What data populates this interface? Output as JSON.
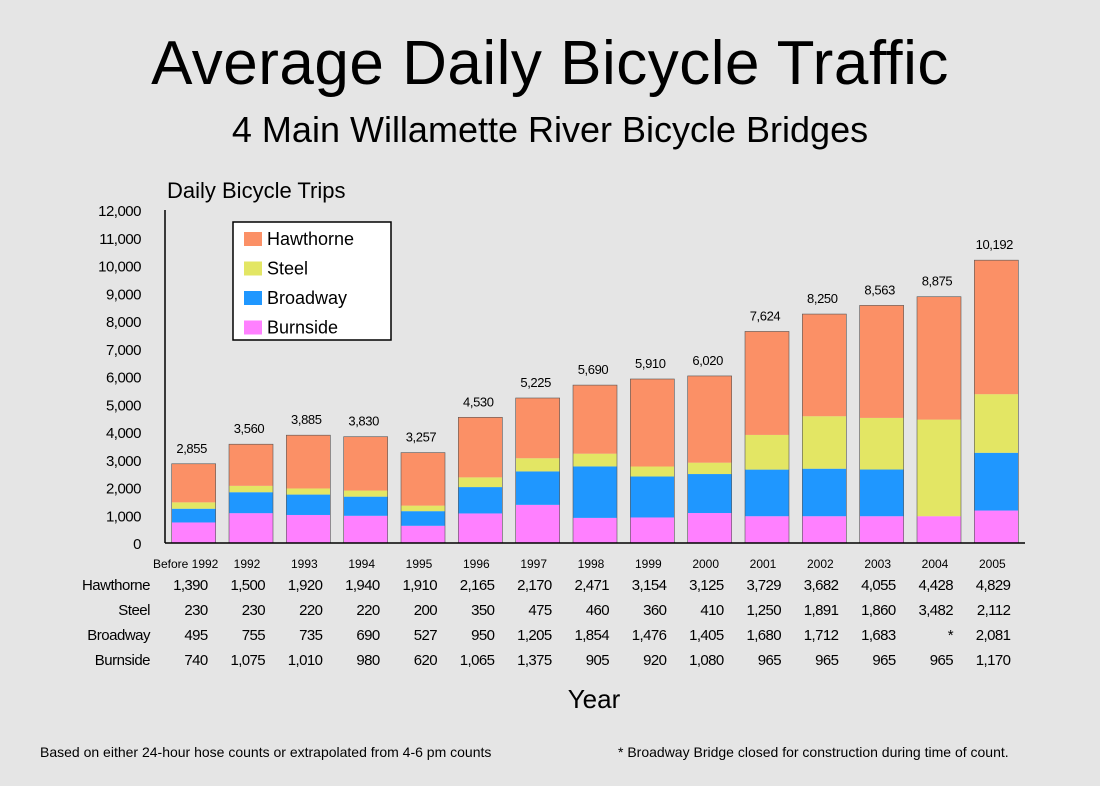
{
  "header": {
    "title": "Average Daily Bicycle Traffic",
    "subtitle": "4 Main Willamette River Bicycle Bridges"
  },
  "footnotes": {
    "left": "Based on either 24-hour hose counts or extrapolated from 4-6 pm counts",
    "right": "* Broadway Bridge closed for construction during time of count."
  },
  "chart_data": {
    "type": "bar",
    "stacked": true,
    "ylabel": "Daily   Bicycle   Trips",
    "xlabel": "Year",
    "ylim": [
      0,
      12000
    ],
    "yticks": [
      0,
      1000,
      2000,
      3000,
      4000,
      5000,
      6000,
      7000,
      8000,
      9000,
      10000,
      11000,
      12000
    ],
    "ytick_labels": [
      "0",
      "1,000",
      "2,000",
      "3,000",
      "4,000",
      "5,000",
      "6,000",
      "7,000",
      "8,000",
      "9,000",
      "10,000",
      "11,000",
      "12,000"
    ],
    "legend_position": "top-left",
    "categories": [
      "Before 1992",
      "1992",
      "1993",
      "1994",
      "1995",
      "1996",
      "1997",
      "1998",
      "1999",
      "2000",
      "2001",
      "2002",
      "2003",
      "2004",
      "2005"
    ],
    "category_labels": [
      "Before  1992",
      "1992",
      "1993",
      "1994",
      "1995",
      "1996",
      "1997",
      "1998",
      "1999",
      "2000",
      "2001",
      "2002",
      "2003",
      "2004",
      "2005"
    ],
    "totals": [
      2855,
      3560,
      3885,
      3830,
      3257,
      4530,
      5225,
      5690,
      5910,
      6020,
      7624,
      8250,
      8563,
      8875,
      10192
    ],
    "total_labels": [
      "2,855",
      "3,560",
      "3,885",
      "3,830",
      "3,257",
      "4,530",
      "5,225",
      "5,690",
      "5,910",
      "6,020",
      "7,624",
      "8,250",
      "8,563",
      "8,875",
      "10,192"
    ],
    "series": [
      {
        "name": "Burnside",
        "color": "#ff80ff",
        "values": [
          740,
          1075,
          1010,
          980,
          620,
          1065,
          1375,
          905,
          920,
          1080,
          965,
          965,
          965,
          965,
          1170
        ],
        "labels": [
          "740",
          "1,075",
          "1,010",
          "980",
          "620",
          "1,065",
          "1,375",
          "905",
          "920",
          "1,080",
          "965",
          "965",
          "965",
          "965",
          "1,170"
        ]
      },
      {
        "name": "Broadway",
        "color": "#1f97ff",
        "values": [
          495,
          755,
          735,
          690,
          527,
          950,
          1205,
          1854,
          1476,
          1405,
          1680,
          1712,
          1683,
          0,
          2081
        ],
        "labels": [
          "495",
          "755",
          "735",
          "690",
          "527",
          "950",
          "1,205",
          "1,854",
          "1,476",
          "1,405",
          "1,680",
          "1,712",
          "1,683",
          "*",
          "2,081"
        ]
      },
      {
        "name": "Steel",
        "color": "#e3e664",
        "values": [
          230,
          230,
          220,
          220,
          200,
          350,
          475,
          460,
          360,
          410,
          1250,
          1891,
          1860,
          3482,
          2112
        ],
        "labels": [
          "230",
          "230",
          "220",
          "220",
          "200",
          "350",
          "475",
          "460",
          "360",
          "410",
          "1,250",
          "1,891",
          "1,860",
          "3,482",
          "2,112"
        ]
      },
      {
        "name": "Hawthorne",
        "color": "#fb9066",
        "values": [
          1390,
          1500,
          1920,
          1940,
          1910,
          2165,
          2170,
          2471,
          3154,
          3125,
          3729,
          3682,
          4055,
          4428,
          4829
        ],
        "labels": [
          "1,390",
          "1,500",
          "1,920",
          "1,940",
          "1,910",
          "2,165",
          "2,170",
          "2,471",
          "3,154",
          "3,125",
          "3,729",
          "3,682",
          "4,055",
          "4,428",
          "4,829"
        ]
      }
    ],
    "table_row_order": [
      "Hawthorne",
      "Steel",
      "Broadway",
      "Burnside"
    ],
    "legend_order": [
      "Hawthorne",
      "Steel",
      "Broadway",
      "Burnside"
    ]
  }
}
